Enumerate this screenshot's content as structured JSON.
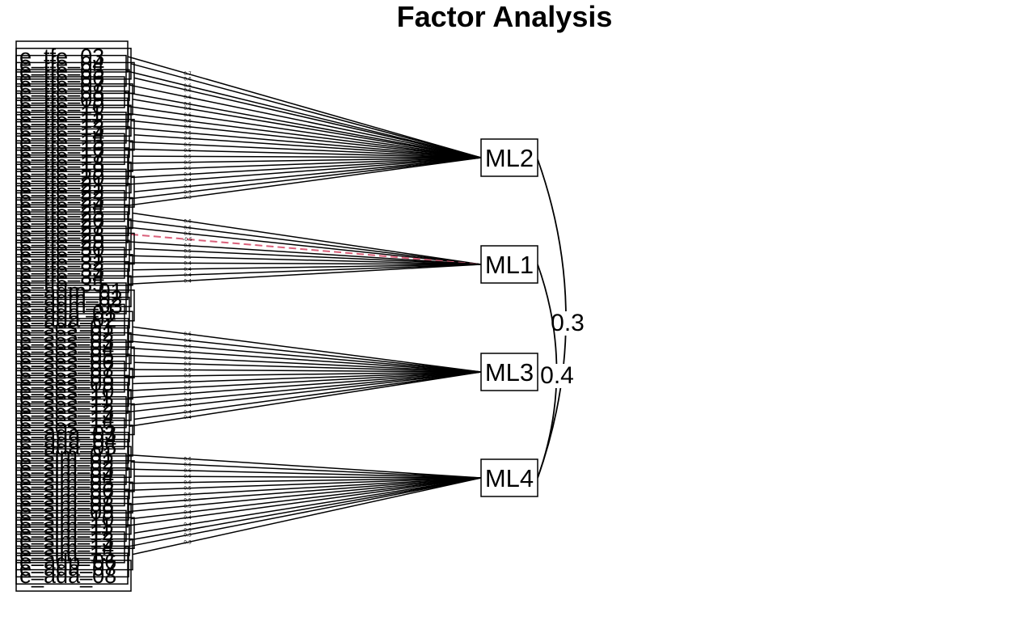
{
  "title": "Factor Analysis",
  "colors": {
    "line": "#000000",
    "negative": "#d9607a"
  },
  "factors": [
    {
      "id": "ML2",
      "label": "ML2"
    },
    {
      "id": "ML1",
      "label": "ML1"
    },
    {
      "id": "ML3",
      "label": "ML3"
    },
    {
      "id": "ML4",
      "label": "ML4"
    }
  ],
  "variables": [
    {
      "label": "e_tfe_03",
      "factor": "ML2",
      "loading": "0.7"
    },
    {
      "label": "e_tfe_04",
      "factor": "ML2",
      "loading": "0.6"
    },
    {
      "label": "e_tfe_05",
      "factor": "ML2",
      "loading": "0.6"
    },
    {
      "label": "e_tfe_06",
      "factor": "ML2",
      "loading": "0.6"
    },
    {
      "label": "e_tfe_07",
      "factor": "ML2",
      "loading": "0.6"
    },
    {
      "label": "e_tfe_08",
      "factor": "ML2",
      "loading": "0.6"
    },
    {
      "label": "e_tfe_09",
      "factor": "ML2",
      "loading": "0.6"
    },
    {
      "label": "e_tfe_10",
      "factor": "ML2",
      "loading": "0.6"
    },
    {
      "label": "e_tfe_11",
      "factor": "ML2",
      "loading": "0.6"
    },
    {
      "label": "e_tfe_12",
      "factor": "ML2",
      "loading": "0.6"
    },
    {
      "label": "e_tfe_13",
      "factor": "ML2",
      "loading": "0.6"
    },
    {
      "label": "e_tfe_14",
      "factor": "ML2",
      "loading": "0.6"
    },
    {
      "label": "e_tfe_15",
      "factor": "ML2",
      "loading": "0.5"
    },
    {
      "label": "e_tfe_16",
      "factor": "ML2",
      "loading": "0.5"
    },
    {
      "label": "e_tfe_17",
      "factor": "ML2",
      "loading": "0.5"
    },
    {
      "label": "e_tfe_18",
      "factor": "ML2",
      "loading": "0.5"
    },
    {
      "label": "e_tfe_19",
      "factor": "ML2",
      "loading": "0.5"
    },
    {
      "label": "e_tfe_20",
      "factor": "ML2",
      "loading": "0.4"
    },
    {
      "label": "e_tfe_21",
      "factor": "ML2",
      "loading": "0.4"
    },
    {
      "label": "e_tfe_22",
      "factor": "ML2",
      "loading": "0.4"
    },
    {
      "label": "e_tfe_23",
      "factor": "ML2",
      "loading": "0.3"
    },
    {
      "label": "e_tfe_24",
      "factor": "ML2",
      "loading": "0.3"
    },
    {
      "label": "e_tfe_25",
      "factor": "ML1",
      "loading": "0.6"
    },
    {
      "label": "e_tfe_26",
      "factor": "ML1",
      "loading": "0.6"
    },
    {
      "label": "e_tfe_27",
      "factor": "ML1",
      "loading": "0.5"
    },
    {
      "label": "e_tfe_28",
      "factor": "ML1",
      "loading": "-0.5",
      "negative": true
    },
    {
      "label": "e_tfe_29",
      "factor": "ML1",
      "loading": "0.5"
    },
    {
      "label": "e_tfe_30",
      "factor": "ML1",
      "loading": "0.5"
    },
    {
      "label": "e_tfe_31",
      "factor": "ML1",
      "loading": "0.5"
    },
    {
      "label": "e_tfe_32",
      "factor": "ML1",
      "loading": "0.4"
    },
    {
      "label": "e_tfe_33",
      "factor": "ML1",
      "loading": "0.4"
    },
    {
      "label": "e_tfe_34",
      "factor": "ML1",
      "loading": "0.4"
    },
    {
      "label": "e_tfe_35",
      "factor": "ML1",
      "loading": "0.4"
    },
    {
      "label": "e_adm_01",
      "factor": "",
      "loading": ""
    },
    {
      "label": "e_adm_02",
      "factor": "",
      "loading": ""
    },
    {
      "label": "e_adm_03",
      "factor": "",
      "loading": ""
    },
    {
      "label": "e_ada_01",
      "factor": "",
      "loading": ""
    },
    {
      "label": "e_ada_02",
      "factor": "",
      "loading": ""
    },
    {
      "label": "e_ses_01",
      "factor": "ML3",
      "loading": "0.6"
    },
    {
      "label": "e_ses_02",
      "factor": "ML3",
      "loading": "0.6"
    },
    {
      "label": "e_ses_03",
      "factor": "ML3",
      "loading": "0.6"
    },
    {
      "label": "e_ses_04",
      "factor": "ML3",
      "loading": "0.6"
    },
    {
      "label": "e_ses_05",
      "factor": "ML3",
      "loading": "0.6"
    },
    {
      "label": "e_ses_06",
      "factor": "ML3",
      "loading": "0.5"
    },
    {
      "label": "e_ses_07",
      "factor": "ML3",
      "loading": "0.5"
    },
    {
      "label": "e_ses_08",
      "factor": "ML3",
      "loading": "0.5"
    },
    {
      "label": "e_ses_09",
      "factor": "ML3",
      "loading": "0.5"
    },
    {
      "label": "e_ses_10",
      "factor": "ML3",
      "loading": "0.5"
    },
    {
      "label": "e_ses_11",
      "factor": "ML3",
      "loading": "0.4"
    },
    {
      "label": "e_ses_12",
      "factor": "ML3",
      "loading": "0.4"
    },
    {
      "label": "e_ses_13",
      "factor": "ML3",
      "loading": "0.4"
    },
    {
      "label": "e_ses_14",
      "factor": "ML3",
      "loading": "0.4"
    },
    {
      "label": "e_ses_15",
      "factor": "ML3",
      "loading": "0.4"
    },
    {
      "label": "e_ada_03",
      "factor": "",
      "loading": ""
    },
    {
      "label": "e_ada_04",
      "factor": "",
      "loading": ""
    },
    {
      "label": "e_ada_05",
      "factor": "",
      "loading": ""
    },
    {
      "label": "e_sim_01",
      "factor": "ML4",
      "loading": "0.6"
    },
    {
      "label": "e_sim_02",
      "factor": "ML4",
      "loading": "0.6"
    },
    {
      "label": "e_sim_03",
      "factor": "ML4",
      "loading": "0.6"
    },
    {
      "label": "e_sim_04",
      "factor": "ML4",
      "loading": "0.6"
    },
    {
      "label": "e_sim_05",
      "factor": "ML4",
      "loading": "0.6"
    },
    {
      "label": "e_sim_06",
      "factor": "ML4",
      "loading": "0.5"
    },
    {
      "label": "e_sim_07",
      "factor": "ML4",
      "loading": "0.5"
    },
    {
      "label": "e_sim_08",
      "factor": "ML4",
      "loading": "0.5"
    },
    {
      "label": "e_sim_09",
      "factor": "ML4",
      "loading": "0.5"
    },
    {
      "label": "e_sim_10",
      "factor": "ML4",
      "loading": "0.4"
    },
    {
      "label": "e_sim_11",
      "factor": "ML4",
      "loading": "0.4"
    },
    {
      "label": "e_sim_12",
      "factor": "ML4",
      "loading": "0.4"
    },
    {
      "label": "e_sim_13",
      "factor": "ML4",
      "loading": "0.3"
    },
    {
      "label": "e_sim_14",
      "factor": "ML4",
      "loading": "0.3"
    },
    {
      "label": "e_sim_15",
      "factor": "ML4",
      "loading": "0.3"
    },
    {
      "label": "e_adp_06",
      "factor": "",
      "loading": ""
    },
    {
      "label": "e_ada_07",
      "factor": "",
      "loading": ""
    },
    {
      "label": "e_ada_08",
      "factor": "",
      "loading": ""
    }
  ],
  "correlations": [
    {
      "from": "ML2",
      "to": "ML4",
      "label": "0.3"
    },
    {
      "from": "ML1",
      "to": "ML4",
      "label": "0.4"
    }
  ]
}
